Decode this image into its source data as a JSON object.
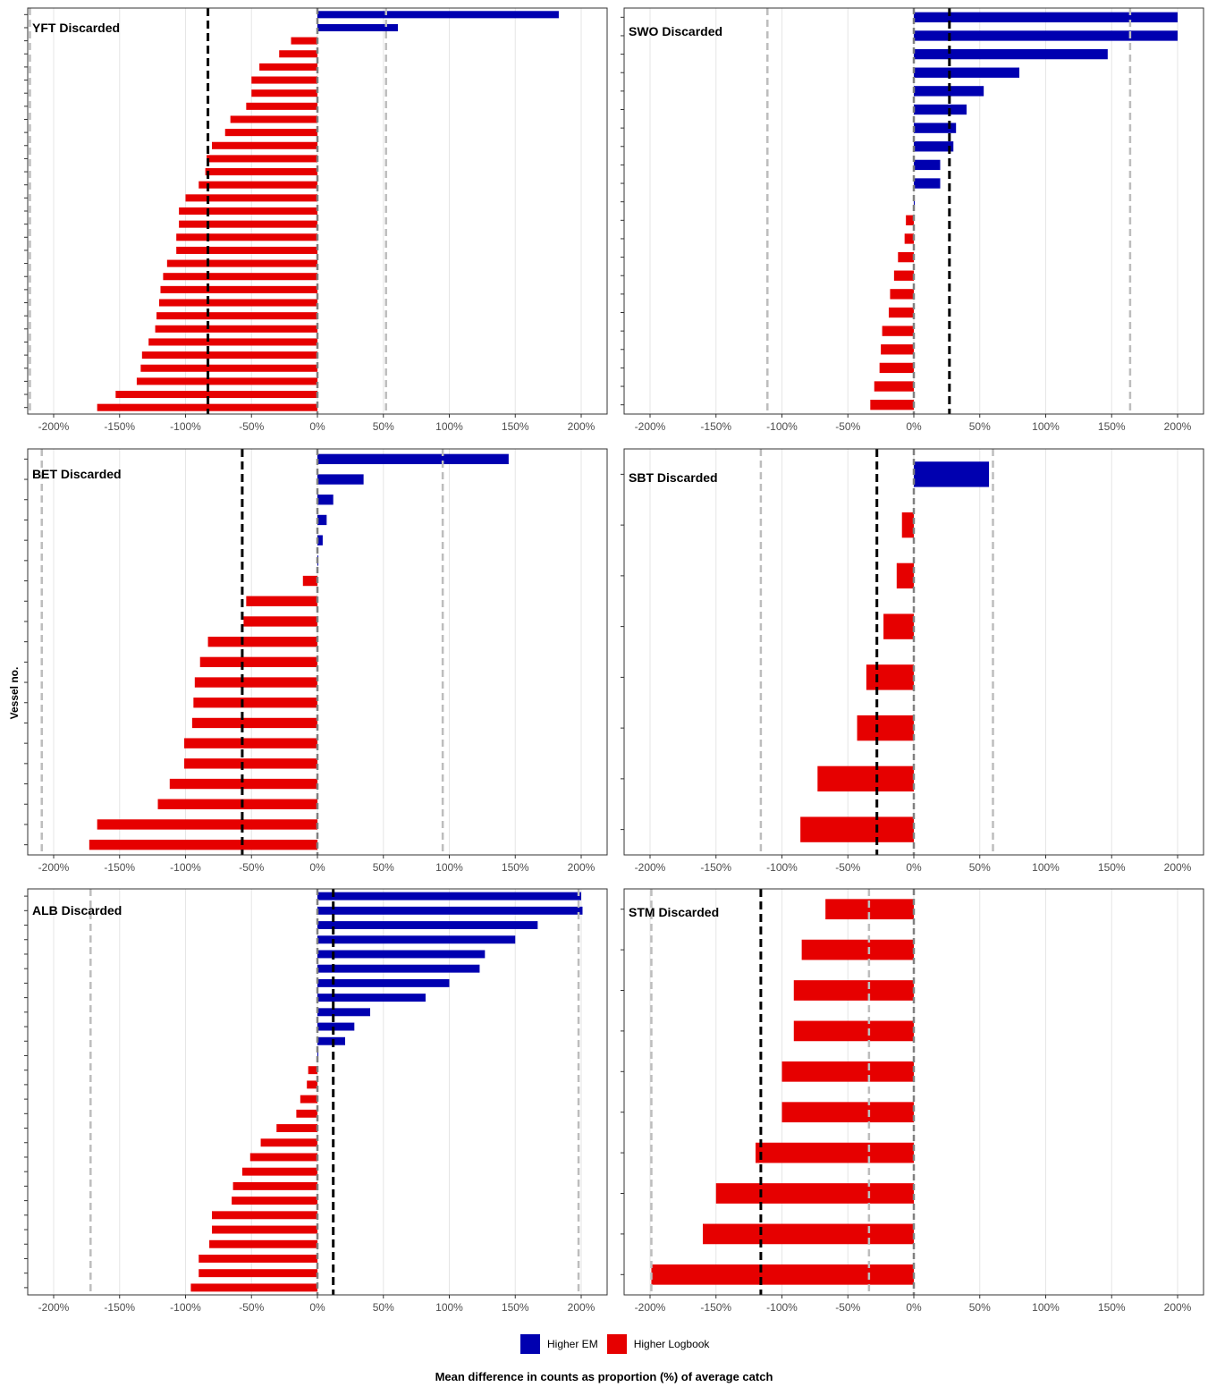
{
  "figure": {
    "x_axis_title": "Mean difference in counts as proportion (%) of average catch",
    "y_axis_title": "Vessel no.",
    "colors": {
      "higher_em": "#0000b0",
      "higher_logbook": "#e60000"
    }
  },
  "legend": {
    "items": [
      {
        "label": "Higher EM",
        "color": "#0000b0"
      },
      {
        "label": "Higher Logbook",
        "color": "#e60000"
      }
    ]
  },
  "chart_data": [
    {
      "type": "bar",
      "orientation": "horizontal",
      "title": "YFT Discarded",
      "xlim": [
        -200,
        200
      ],
      "x_ticks": [
        "-200%",
        "-150%",
        "-100%",
        "-50%",
        "0%",
        "50%",
        "100%",
        "150%",
        "200%"
      ],
      "mean_line": -83,
      "limit_lines": [
        -218,
        52
      ],
      "grid": true,
      "values": [
        183,
        61,
        -20,
        -29,
        -44,
        -50,
        -50,
        -54,
        -66,
        -70,
        -80,
        -84,
        -85,
        -90,
        -100,
        -105,
        -105,
        -107,
        -107,
        -114,
        -117,
        -119,
        -120,
        -122,
        -123,
        -128,
        -133,
        -134,
        -137,
        -153,
        -167
      ]
    },
    {
      "type": "bar",
      "orientation": "horizontal",
      "title": "SWO Discarded",
      "xlim": [
        -200,
        200
      ],
      "x_ticks": [
        "-200%",
        "-150%",
        "-100%",
        "-50%",
        "0%",
        "50%",
        "100%",
        "150%",
        "200%"
      ],
      "mean_line": 27,
      "limit_lines": [
        -111,
        164
      ],
      "grid": true,
      "values": [
        200,
        200,
        147,
        80,
        53,
        40,
        32,
        30,
        20,
        20,
        0.5,
        -6,
        -7,
        -12,
        -15,
        -18,
        -19,
        -24,
        -25,
        -26,
        -30,
        -33
      ]
    },
    {
      "type": "bar",
      "orientation": "horizontal",
      "title": "BET Discarded",
      "xlim": [
        -200,
        200
      ],
      "x_ticks": [
        "-200%",
        "-150%",
        "-100%",
        "-50%",
        "0%",
        "50%",
        "100%",
        "150%",
        "200%"
      ],
      "mean_line": -57,
      "limit_lines": [
        -209,
        95
      ],
      "grid": true,
      "values": [
        145,
        35,
        12,
        7,
        4,
        0,
        -11,
        -54,
        -56,
        -83,
        -89,
        -93,
        -94,
        -95,
        -101,
        -101,
        -112,
        -121,
        -167,
        -173
      ]
    },
    {
      "type": "bar",
      "orientation": "horizontal",
      "title": "SBT Discarded",
      "xlim": [
        -200,
        200
      ],
      "x_ticks": [
        "-200%",
        "-150%",
        "-100%",
        "-50%",
        "0%",
        "50%",
        "100%",
        "150%",
        "200%"
      ],
      "mean_line": -28,
      "limit_lines": [
        -116,
        60
      ],
      "grid": true,
      "values": [
        57,
        -9,
        -13,
        -23,
        -36,
        -43,
        -73,
        -86
      ]
    },
    {
      "type": "bar",
      "orientation": "horizontal",
      "title": "ALB Discarded",
      "xlim": [
        -200,
        200
      ],
      "x_ticks": [
        "-200%",
        "-150%",
        "-100%",
        "-50%",
        "0%",
        "50%",
        "100%",
        "150%",
        "200%"
      ],
      "mean_line": 12,
      "limit_lines": [
        -172,
        198
      ],
      "grid": true,
      "values": [
        200,
        201,
        167,
        150,
        127,
        123,
        100,
        82,
        40,
        28,
        21,
        0,
        -7,
        -8,
        -13,
        -16,
        -31,
        -43,
        -51,
        -57,
        -64,
        -65,
        -80,
        -80,
        -82,
        -90,
        -90,
        -96
      ]
    },
    {
      "type": "bar",
      "orientation": "horizontal",
      "title": "STM Discarded",
      "xlim": [
        -200,
        200
      ],
      "x_ticks": [
        "-200%",
        "-150%",
        "-100%",
        "-50%",
        "0%",
        "50%",
        "100%",
        "150%",
        "200%"
      ],
      "mean_line": -116,
      "limit_lines": [
        -199,
        -34
      ],
      "grid": true,
      "values": [
        -67,
        -85,
        -91,
        -91,
        -100,
        -100,
        -120,
        -150,
        -160,
        -199
      ]
    }
  ]
}
